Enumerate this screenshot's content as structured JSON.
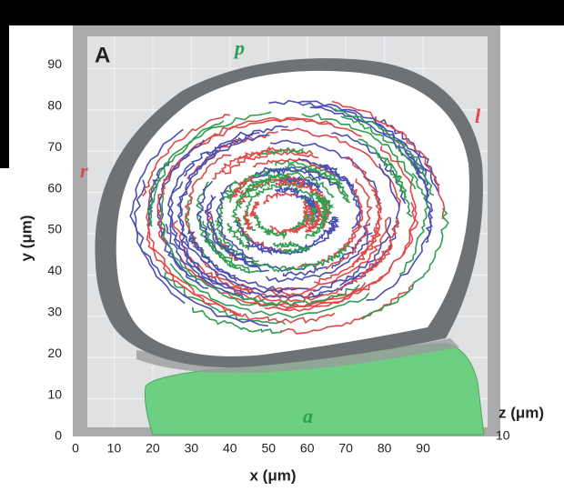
{
  "chart_data": {
    "type": "trajectory",
    "panel_label": "A",
    "x_label": "x (μm)",
    "y_label": "y (μm)",
    "z_label": "z (μm)",
    "zticks": [
      10
    ],
    "annotations": {
      "p": "p",
      "l": "l",
      "r": "r",
      "a": "a"
    },
    "xlim": [
      0,
      106
    ],
    "ylim": [
      0,
      100
    ],
    "xticks": [
      0,
      10,
      20,
      30,
      40,
      50,
      60,
      70,
      80,
      90
    ],
    "yticks": [
      0,
      10,
      20,
      30,
      40,
      50,
      60,
      70,
      80,
      90
    ],
    "grid": true,
    "track_colors": [
      "#e04848",
      "#4a4fb0",
      "#2f9e50"
    ]
  }
}
